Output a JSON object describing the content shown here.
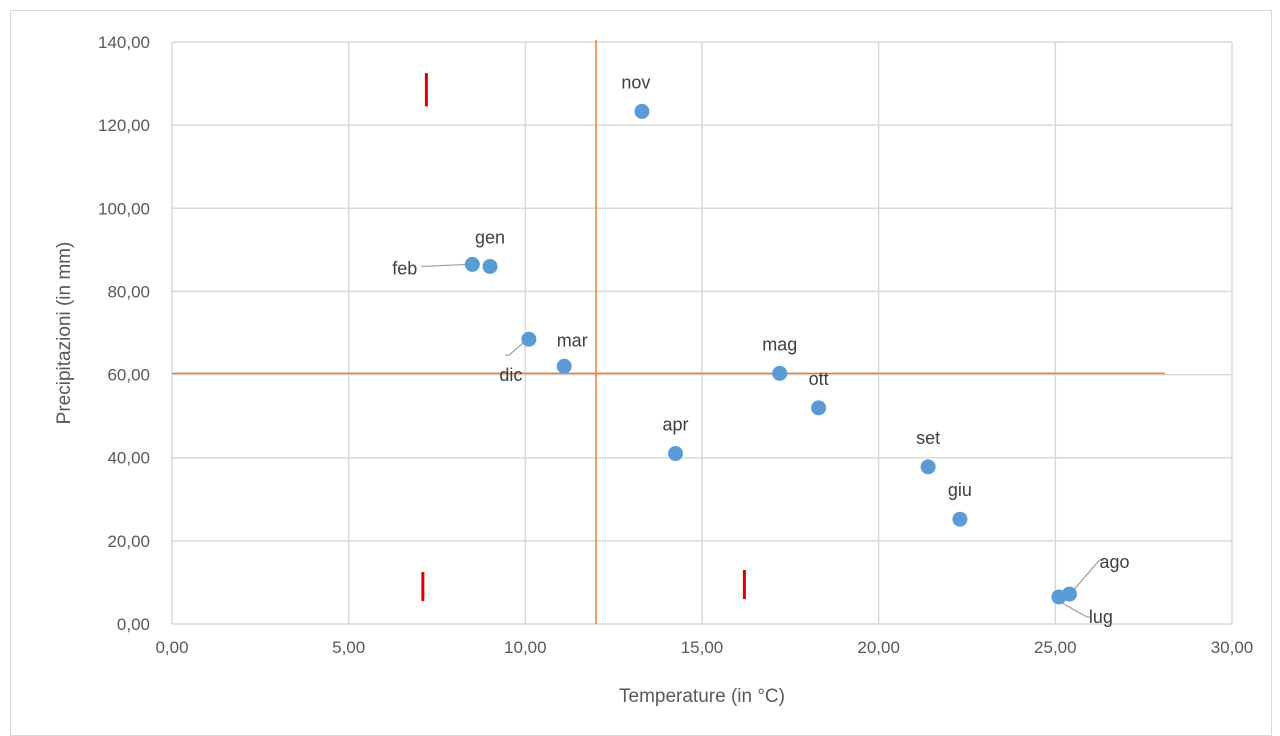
{
  "chart_data": {
    "type": "scatter",
    "title": "",
    "xlabel": "Temperature (in °C)",
    "ylabel": "Precipitazioni (in mm)",
    "xlim": [
      0,
      30
    ],
    "ylim": [
      0,
      140
    ],
    "x_ticks": [
      "0,00",
      "5,00",
      "10,00",
      "15,00",
      "20,00",
      "25,00",
      "30,00"
    ],
    "y_ticks": [
      "0,00",
      "20,00",
      "40,00",
      "60,00",
      "80,00",
      "100,00",
      "120,00",
      "140,00"
    ],
    "grid": true,
    "legend": "none",
    "colors": {
      "points": "#5b9bd5",
      "reference_lines": "#ed7d31",
      "markers": "#e00000",
      "grid": "#d9d9d9"
    },
    "points": [
      {
        "label": "gen",
        "x": 9.0,
        "y": 86.0
      },
      {
        "label": "feb",
        "x": 8.5,
        "y": 86.5
      },
      {
        "label": "mar",
        "x": 11.1,
        "y": 62.0
      },
      {
        "label": "apr",
        "x": 14.25,
        "y": 41.0
      },
      {
        "label": "mag",
        "x": 17.2,
        "y": 60.3
      },
      {
        "label": "giu",
        "x": 22.3,
        "y": 25.2
      },
      {
        "label": "lug",
        "x": 25.1,
        "y": 6.5
      },
      {
        "label": "ago",
        "x": 25.4,
        "y": 7.2
      },
      {
        "label": "set",
        "x": 21.4,
        "y": 37.8
      },
      {
        "label": "ott",
        "x": 18.3,
        "y": 52.0
      },
      {
        "label": "nov",
        "x": 13.3,
        "y": 123.3
      },
      {
        "label": "dic",
        "x": 10.1,
        "y": 68.5
      }
    ],
    "reference_lines": {
      "vertical_x": 12.0,
      "horizontal_y": 60.3
    },
    "markers": [
      {
        "x": 7.2,
        "y0": 124.5,
        "y1": 132.5
      },
      {
        "x": 7.1,
        "y0": 5.5,
        "y1": 12.5
      },
      {
        "x": 16.2,
        "y0": 6.0,
        "y1": 13.0
      }
    ]
  }
}
